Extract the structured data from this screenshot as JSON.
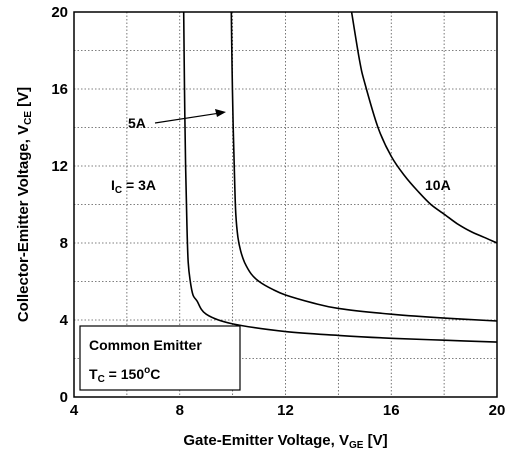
{
  "chart_data": {
    "type": "line",
    "title": "",
    "xlabel": {
      "main": "Gate-Emitter Voltage, V",
      "sub": "GE",
      "unit": " [V]"
    },
    "ylabel": {
      "main": "Collector-Emitter Voltage, V",
      "sub": "CE",
      "unit": " [V]"
    },
    "xlim": [
      4,
      20
    ],
    "ylim": [
      0,
      20
    ],
    "xticks": [
      "4",
      "8",
      "12",
      "16",
      "20"
    ],
    "yticks": [
      "0",
      "4",
      "8",
      "12",
      "16",
      "20"
    ],
    "xtick_values": [
      4,
      8,
      12,
      16,
      20
    ],
    "ytick_values": [
      0,
      4,
      8,
      12,
      16,
      20
    ],
    "grid": true,
    "grid_style": "dotted",
    "series": [
      {
        "name": "3A",
        "x": [
          8.15,
          8.18,
          8.22,
          8.27,
          8.32,
          8.4,
          8.5,
          8.65,
          9.0,
          10.0,
          12.0,
          14.0,
          16.0,
          18.0,
          20.0
        ],
        "y": [
          20.0,
          16.0,
          12.0,
          9.0,
          7.0,
          6.0,
          5.3,
          5.0,
          4.3,
          3.8,
          3.4,
          3.2,
          3.05,
          2.95,
          2.85
        ]
      },
      {
        "name": "5A",
        "x": [
          9.95,
          9.98,
          10.02,
          10.07,
          10.12,
          10.2,
          10.3,
          10.45,
          10.7,
          11.0,
          11.5,
          12.0,
          13.0,
          14.0,
          16.0,
          18.0,
          20.0
        ],
        "y": [
          20.0,
          17.0,
          14.0,
          11.5,
          9.5,
          8.3,
          7.6,
          7.0,
          6.4,
          6.0,
          5.6,
          5.3,
          4.9,
          4.6,
          4.3,
          4.1,
          3.95
        ]
      },
      {
        "name": "10A",
        "x": [
          14.5,
          14.8,
          15.0,
          15.5,
          16.0,
          16.5,
          17.0,
          17.5,
          18.0,
          18.5,
          19.0,
          19.5,
          20.0
        ],
        "y": [
          20.0,
          17.5,
          16.3,
          14.0,
          12.5,
          11.5,
          10.7,
          10.0,
          9.5,
          9.0,
          8.6,
          8.3,
          8.0
        ]
      }
    ],
    "annotations": {
      "ic3": {
        "prefix": "I",
        "sub": "C",
        "rest": " = 3A"
      },
      "a5": {
        "text": "5A"
      },
      "a10": {
        "text": "10A"
      }
    },
    "legend_box": {
      "line1": "Common Emitter",
      "line2_prefix": "T",
      "line2_sub": "C",
      "line2_mid": " = 150",
      "line2_sup": "o",
      "line2_end": "C"
    }
  }
}
